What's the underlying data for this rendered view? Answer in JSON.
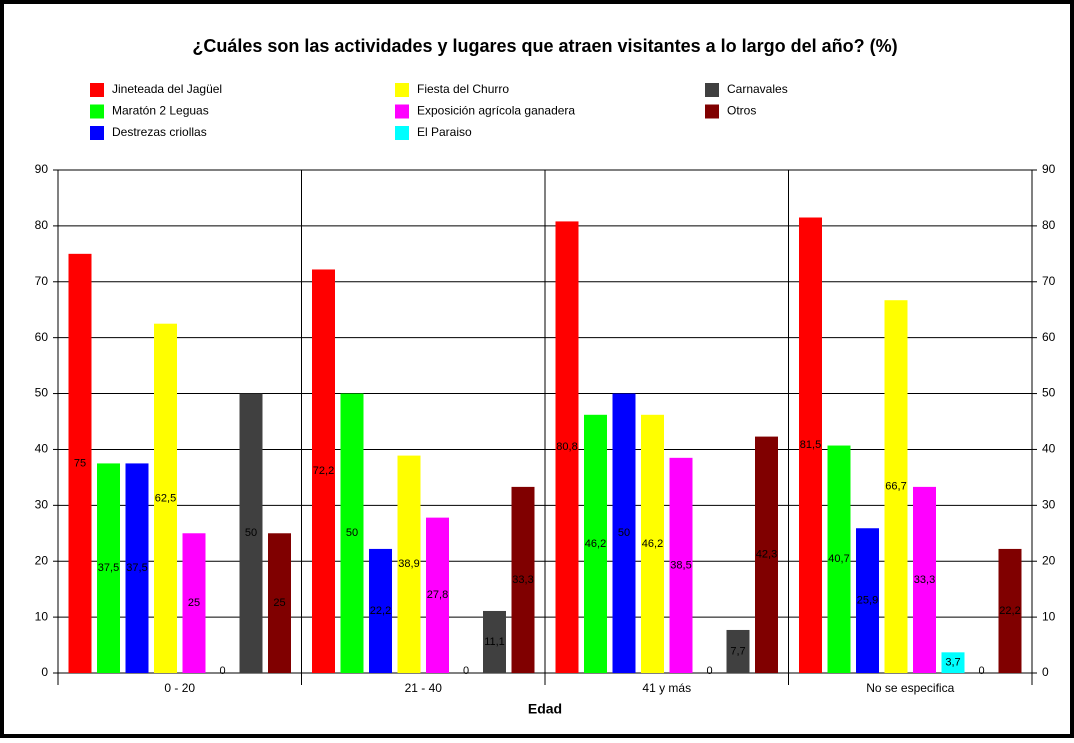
{
  "chart_data": {
    "type": "bar",
    "title": "¿Cuáles son las actividades y lugares que atraen visitantes a lo largo del año? (%)",
    "x_label": "Edad",
    "categories": [
      "0 - 20",
      "21 - 40",
      "41 y más",
      "No se especifica"
    ],
    "series": [
      {
        "name": "Jineteada del Jagüel",
        "color": "#ff0000",
        "values": [
          75,
          72.2,
          80.8,
          81.5
        ],
        "value_labels": [
          "75",
          "72,2",
          "80,8",
          "81,5"
        ]
      },
      {
        "name": "Maratón 2 Leguas",
        "color": "#00ff00",
        "values": [
          37.5,
          50,
          46.2,
          40.7
        ],
        "value_labels": [
          "37,5",
          "50",
          "46,2",
          "40,7"
        ]
      },
      {
        "name": "Destrezas criollas",
        "color": "#0000ff",
        "values": [
          37.5,
          22.2,
          50,
          25.9
        ],
        "value_labels": [
          "37,5",
          "22,2",
          "50",
          "25,9"
        ]
      },
      {
        "name": "Fiesta del Churro",
        "color": "#ffff00",
        "values": [
          62.5,
          38.9,
          46.2,
          66.7
        ],
        "value_labels": [
          "62,5",
          "38,9",
          "46,2",
          "66,7"
        ]
      },
      {
        "name": "Exposición agrícola ganadera",
        "color": "#ff00ff",
        "values": [
          25,
          27.8,
          38.5,
          33.3
        ],
        "value_labels": [
          "25",
          "27,8",
          "38,5",
          "33,3"
        ]
      },
      {
        "name": "El Paraiso",
        "color": "#00ffff",
        "values": [
          0,
          0,
          0,
          3.7
        ],
        "value_labels": [
          "0",
          "0",
          "0",
          "3,7"
        ]
      },
      {
        "name": "Carnavales",
        "color": "#404040",
        "values": [
          50,
          11.1,
          7.7,
          0
        ],
        "value_labels": [
          "50",
          "11,1",
          "7,7",
          "0"
        ]
      },
      {
        "name": "Otros",
        "color": "#800000",
        "values": [
          25,
          33.3,
          42.3,
          22.2
        ],
        "value_labels": [
          "25",
          "33,3",
          "42,3",
          "22,2"
        ]
      }
    ],
    "ylim": [
      0,
      90
    ],
    "yticks": [
      0,
      10,
      20,
      30,
      40,
      50,
      60,
      70,
      80,
      90
    ],
    "grid": true
  }
}
